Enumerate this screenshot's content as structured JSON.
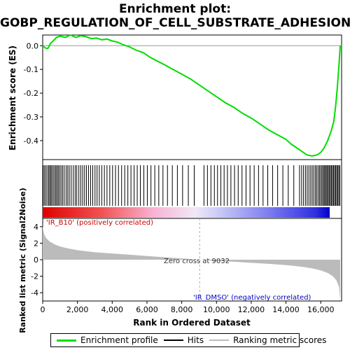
{
  "title_line1": "Enrichment plot:",
  "title_line2": "GOBP_REGULATION_OF_CELL_SUBSTRATE_ADHESION",
  "legend": {
    "items": [
      {
        "label": "Enrichment profile",
        "color": "#00dd00"
      },
      {
        "label": "Hits",
        "color": "#000000"
      },
      {
        "label": "Ranking metric scores",
        "color": "#bbbbbb"
      }
    ]
  },
  "annotations": {
    "positive": "'IR_B10' (positively correlated)",
    "negative": "'IR_DMSO' (negatively correlated)",
    "zero_cross": "Zero cross at 9032"
  },
  "colors": {
    "enrichment_line": "#00dd00",
    "positive_text": "#cc0000",
    "negative_text": "#0000cc",
    "metric_fill": "#bbbbbb"
  },
  "chart_data": [
    {
      "type": "line",
      "name": "enrichment-profile",
      "ylabel": "Enrichment score (ES)",
      "xlim": [
        0,
        17200
      ],
      "ylim": [
        -0.48,
        0.045
      ],
      "y_ticks": [
        "0.0",
        "-0.1",
        "-0.2",
        "-0.3",
        "-0.4"
      ],
      "y_tick_values": [
        0.0,
        -0.1,
        -0.2,
        -0.3,
        -0.4
      ],
      "x": [
        0,
        150,
        300,
        450,
        600,
        800,
        1000,
        1300,
        1600,
        1900,
        2200,
        2500,
        2800,
        3100,
        3400,
        3700,
        4000,
        4300,
        4600,
        5000,
        5400,
        5800,
        6200,
        6600,
        7000,
        7500,
        8000,
        8500,
        9000,
        9500,
        10000,
        10500,
        11000,
        11500,
        12000,
        12500,
        13000,
        13500,
        14000,
        14300,
        14600,
        14900,
        15200,
        15500,
        15800,
        16000,
        16200,
        16400,
        16600,
        16750,
        16850,
        16950,
        17050,
        17120
      ],
      "y": [
        0.0,
        -0.01,
        -0.012,
        0.01,
        0.02,
        0.035,
        0.04,
        0.035,
        0.045,
        0.035,
        0.042,
        0.038,
        0.03,
        0.032,
        0.025,
        0.028,
        0.02,
        0.015,
        0.005,
        -0.005,
        -0.02,
        -0.03,
        -0.05,
        -0.065,
        -0.08,
        -0.1,
        -0.12,
        -0.14,
        -0.165,
        -0.19,
        -0.215,
        -0.24,
        -0.26,
        -0.285,
        -0.305,
        -0.33,
        -0.355,
        -0.375,
        -0.395,
        -0.415,
        -0.43,
        -0.445,
        -0.46,
        -0.465,
        -0.46,
        -0.45,
        -0.43,
        -0.4,
        -0.36,
        -0.32,
        -0.26,
        -0.18,
        -0.08,
        0.0
      ]
    },
    {
      "type": "bar",
      "name": "hits",
      "xlim": [
        0,
        17200
      ],
      "hit_ranks": [
        20,
        90,
        170,
        250,
        340,
        400,
        470,
        530,
        610,
        690,
        760,
        830,
        900,
        980,
        1060,
        1150,
        1240,
        1350,
        1440,
        1530,
        1640,
        1760,
        1870,
        1960,
        2080,
        2190,
        2300,
        2410,
        2520,
        2640,
        2760,
        2880,
        3010,
        3130,
        3260,
        3400,
        3550,
        3700,
        3860,
        4020,
        4190,
        4360,
        4540,
        4720,
        4900,
        5080,
        5260,
        5440,
        5620,
        5820,
        6020,
        6230,
        6450,
        6680,
        6920,
        7180,
        7460,
        7750,
        8050,
        8380,
        8720,
        9280,
        9480,
        9680,
        9880,
        10060,
        10250,
        10440,
        10630,
        10830,
        11040,
        11250,
        11470,
        11700,
        11930,
        12170,
        12420,
        12680,
        12950,
        13230,
        13520,
        13820,
        14130,
        14450,
        14780,
        14900,
        15010,
        15120,
        15220,
        15320,
        15420,
        15510,
        15600,
        15690,
        15770,
        15850,
        15930,
        16000,
        16070,
        16140,
        16200,
        16260,
        16320,
        16380,
        16440,
        16500,
        16560,
        16620,
        16680,
        16740,
        16800,
        16860,
        16920,
        16980,
        17040,
        17100
      ]
    },
    {
      "type": "area",
      "name": "ranked-list-metric",
      "xlabel": "Rank in Ordered Dataset",
      "ylabel": "Ranked list metric (Signal2Noise)",
      "xlim": [
        0,
        17200
      ],
      "ylim": [
        -5,
        5
      ],
      "x_ticks": [
        "0",
        "2,000",
        "4,000",
        "6,000",
        "8,000",
        "10,000",
        "12,000",
        "14,000",
        "16,000"
      ],
      "x_tick_values": [
        0,
        2000,
        4000,
        6000,
        8000,
        10000,
        12000,
        14000,
        16000
      ],
      "y_ticks": [
        "4",
        "2",
        "0",
        "-2",
        "-4"
      ],
      "y_tick_values": [
        4,
        2,
        0,
        -2,
        -4
      ],
      "x": [
        0,
        30,
        100,
        200,
        400,
        700,
        1000,
        1500,
        2000,
        3000,
        4000,
        5000,
        6000,
        7000,
        8000,
        9032,
        10000,
        11000,
        12000,
        13000,
        14000,
        14500,
        15000,
        15500,
        16000,
        16400,
        16700,
        16900,
        17050,
        17120
      ],
      "y": [
        4.2,
        3.6,
        3.0,
        2.6,
        2.2,
        1.85,
        1.6,
        1.35,
        1.15,
        0.9,
        0.75,
        0.6,
        0.45,
        0.3,
        0.15,
        0.0,
        -0.15,
        -0.25,
        -0.38,
        -0.5,
        -0.65,
        -0.75,
        -0.88,
        -1.05,
        -1.3,
        -1.6,
        -2.0,
        -2.5,
        -3.3,
        -4.8
      ]
    }
  ]
}
